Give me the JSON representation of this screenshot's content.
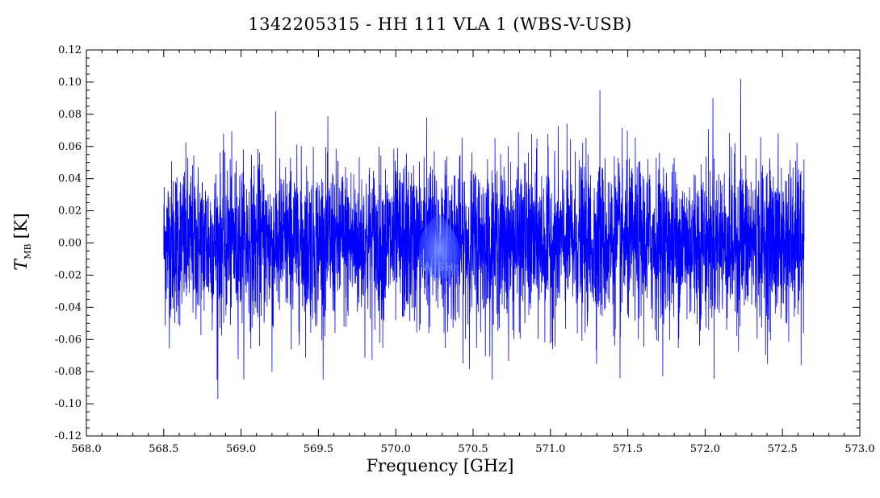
{
  "chart_data": {
    "type": "line",
    "title": "1342205315 - HH 111 VLA 1 (WBS-V-USB)",
    "xlabel": "Frequency [GHz]",
    "ylabel_symbol": "T",
    "ylabel_subscript": "MB",
    "ylabel_unit": "[K]",
    "xlim": [
      568.0,
      573.0
    ],
    "ylim": [
      -0.12,
      0.12
    ],
    "x_ticks": [
      "568.0",
      "568.5",
      "569.0",
      "569.5",
      "570.0",
      "570.5",
      "571.0",
      "571.5",
      "572.0",
      "572.5",
      "573.0"
    ],
    "y_ticks": [
      "-0.12",
      "-0.10",
      "-0.08",
      "-0.06",
      "-0.04",
      "-0.02",
      "0.00",
      "0.02",
      "0.04",
      "0.06",
      "0.08",
      "0.10",
      "0.12"
    ],
    "series": [
      {
        "color": "#0000ff",
        "x_start": 568.5,
        "x_end": 572.64,
        "noise_rms": 0.025,
        "notable_points": [
          {
            "x": 568.85,
            "y": -0.097
          },
          {
            "x": 569.2,
            "y": -0.08
          },
          {
            "x": 570.2,
            "y": 0.078
          },
          {
            "x": 571.32,
            "y": 0.095
          },
          {
            "x": 571.45,
            "y": -0.084
          },
          {
            "x": 572.05,
            "y": 0.09
          },
          {
            "x": 572.23,
            "y": 0.102
          },
          {
            "x": 572.62,
            "y": -0.076
          }
        ]
      }
    ],
    "watermark_text": "WISH"
  }
}
